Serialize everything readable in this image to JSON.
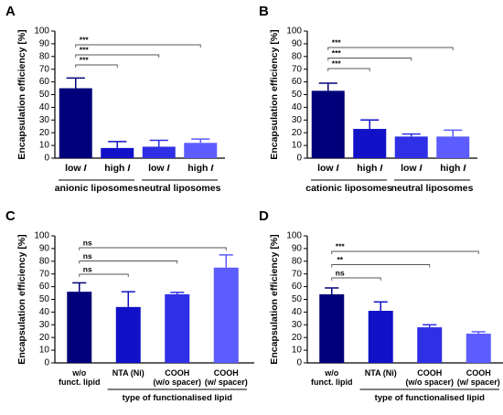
{
  "chart_data": [
    {
      "panel": "A",
      "type": "bar",
      "ylabel": "Encapsulation efficiency [%]",
      "ylim": [
        0,
        100
      ],
      "yticks": [
        0,
        10,
        20,
        30,
        40,
        50,
        60,
        70,
        80,
        90,
        100
      ],
      "categories": [
        {
          "text": "low ",
          "ital": "I"
        },
        {
          "text": "high ",
          "ital": "I"
        },
        {
          "text": "low ",
          "ital": "I"
        },
        {
          "text": "high ",
          "ital": "I"
        }
      ],
      "values": [
        55,
        8,
        9,
        12
      ],
      "errors": [
        8,
        5,
        5,
        3
      ],
      "colors": [
        "#00007a",
        "#1111c8",
        "#2f2fe6",
        "#5c5cff"
      ],
      "groups": [
        {
          "label": "anionic liposomes",
          "from": 0,
          "to": 1
        },
        {
          "label": "neutral liposomes",
          "from": 2,
          "to": 3
        }
      ],
      "significance": [
        {
          "from": 0,
          "to": 1,
          "label": "***"
        },
        {
          "from": 0,
          "to": 2,
          "label": "***"
        },
        {
          "from": 0,
          "to": 3,
          "label": "***"
        }
      ]
    },
    {
      "panel": "B",
      "type": "bar",
      "ylabel": "Encapsulation efficiency [%]",
      "ylim": [
        0,
        100
      ],
      "yticks": [
        0,
        10,
        20,
        30,
        40,
        50,
        60,
        70,
        80,
        90,
        100
      ],
      "categories": [
        {
          "text": "low ",
          "ital": "I"
        },
        {
          "text": "high ",
          "ital": "I"
        },
        {
          "text": "low ",
          "ital": "I"
        },
        {
          "text": "high ",
          "ital": "I"
        }
      ],
      "values": [
        53,
        23,
        17,
        17
      ],
      "errors": [
        6,
        7,
        2,
        5
      ],
      "colors": [
        "#00007a",
        "#1111c8",
        "#2f2fe6",
        "#5c5cff"
      ],
      "groups": [
        {
          "label": "cationic liposomes",
          "from": 0,
          "to": 1
        },
        {
          "label": "neutral liposomes",
          "from": 2,
          "to": 3
        }
      ],
      "significance": [
        {
          "from": 0,
          "to": 1,
          "label": "***"
        },
        {
          "from": 0,
          "to": 2,
          "label": "***"
        },
        {
          "from": 0,
          "to": 3,
          "label": "***"
        }
      ]
    },
    {
      "panel": "C",
      "type": "bar",
      "ylabel": "Encapsulation efficiency [%]",
      "ylim": [
        0,
        100
      ],
      "yticks": [
        0,
        10,
        20,
        30,
        40,
        50,
        60,
        70,
        80,
        90,
        100
      ],
      "categories": [
        {
          "lines": [
            "w/o",
            "funct. lipid"
          ]
        },
        {
          "lines": [
            "NTA (Ni)"
          ]
        },
        {
          "lines": [
            "COOH",
            "(w/o spacer)"
          ]
        },
        {
          "lines": [
            "COOH",
            "(w/ spacer)"
          ]
        }
      ],
      "values": [
        56,
        44,
        54,
        75
      ],
      "errors": [
        7,
        12,
        1.5,
        10
      ],
      "colors": [
        "#00007a",
        "#1111c8",
        "#2f2fe6",
        "#5c5cff"
      ],
      "groups": [
        {
          "label": "type of functionalised lipid",
          "from": 1,
          "to": 3
        }
      ],
      "significance": [
        {
          "from": 0,
          "to": 1,
          "label": "ns"
        },
        {
          "from": 0,
          "to": 2,
          "label": "ns"
        },
        {
          "from": 0,
          "to": 3,
          "label": "ns"
        }
      ]
    },
    {
      "panel": "D",
      "type": "bar",
      "ylabel": "Encapsulation efficiency [%]",
      "ylim": [
        0,
        100
      ],
      "yticks": [
        0,
        10,
        20,
        30,
        40,
        50,
        60,
        70,
        80,
        90,
        100
      ],
      "categories": [
        {
          "lines": [
            "w/o",
            "funct. lipid"
          ]
        },
        {
          "lines": [
            "NTA (Ni)"
          ]
        },
        {
          "lines": [
            "COOH",
            "(w/o spacer)"
          ]
        },
        {
          "lines": [
            "COOH",
            "(w/ spacer)"
          ]
        }
      ],
      "values": [
        54,
        41,
        28,
        23
      ],
      "errors": [
        5,
        7,
        2,
        1.5
      ],
      "colors": [
        "#00007a",
        "#1111c8",
        "#2f2fe6",
        "#5c5cff"
      ],
      "groups": [
        {
          "label": "type of functionalised lipid",
          "from": 1,
          "to": 3
        }
      ],
      "significance": [
        {
          "from": 0,
          "to": 1,
          "label": "ns"
        },
        {
          "from": 0,
          "to": 2,
          "label": "**"
        },
        {
          "from": 0,
          "to": 3,
          "label": "***"
        }
      ]
    }
  ]
}
